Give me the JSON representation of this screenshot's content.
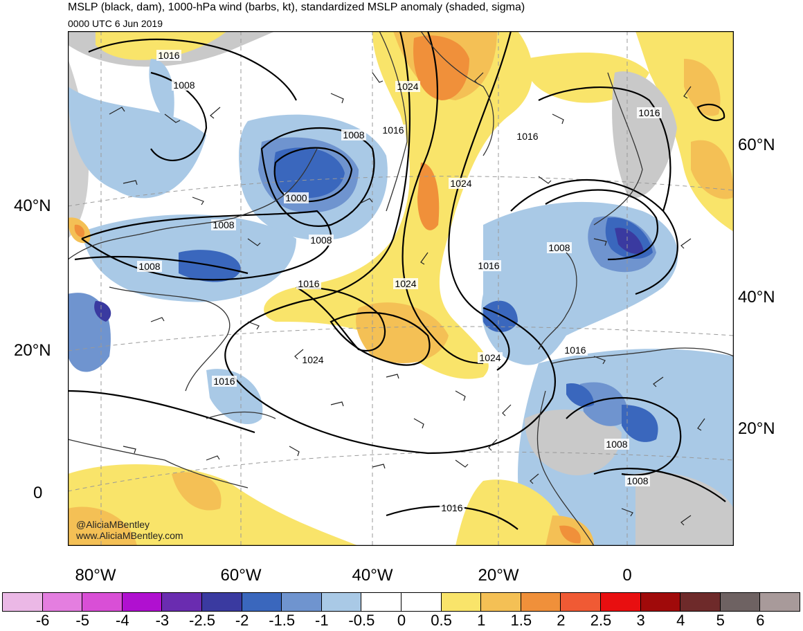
{
  "header": {
    "title": "MSLP (black, dam), 1000-hPa wind (barbs, kt), standardized MSLP anomaly (shaded, sigma)",
    "valid_time": "0000 UTC 6 Jun 2019"
  },
  "map": {
    "region": "North Atlantic",
    "projection": "conic",
    "lon_labels": [
      "80°W",
      "60°W",
      "40°W",
      "20°W",
      "0"
    ],
    "lat_labels_left": [
      "40°N",
      "20°N",
      "0"
    ],
    "lat_labels_right": [
      "60°N",
      "40°N",
      "20°N"
    ],
    "isobar_labels": [
      "1016",
      "1008",
      "1008",
      "1000",
      "1008",
      "1008",
      "1008",
      "1016",
      "1024",
      "1024",
      "1016",
      "1016",
      "1024",
      "1024",
      "1016",
      "1008",
      "1016",
      "1024",
      "1016",
      "1016",
      "1008",
      "1008",
      "1016"
    ],
    "credit_handle": "@AliciaMBentley",
    "credit_url": "www.AliciaMBentley.com"
  },
  "colorbar": {
    "colors": [
      "#ebb8e6",
      "#e47ee0",
      "#d94fd6",
      "#b010d0",
      "#6a2cb0",
      "#3a3aa0",
      "#3a67bd",
      "#6f94cf",
      "#a9c9e6",
      "#ffffff",
      "#ffffff",
      "#f9e46a",
      "#f4c055",
      "#f0903a",
      "#f05a34",
      "#e80f10",
      "#a00a0a",
      "#6e2a2a",
      "#6e6262",
      "#a89a9a"
    ],
    "ticks": [
      "-6",
      "-5",
      "-4",
      "-3",
      "-2.5",
      "-2",
      "-1.5",
      "-1",
      "-0.5",
      "0",
      "0.5",
      "1",
      "1.5",
      "2",
      "2.5",
      "3",
      "4",
      "5",
      "6"
    ]
  }
}
